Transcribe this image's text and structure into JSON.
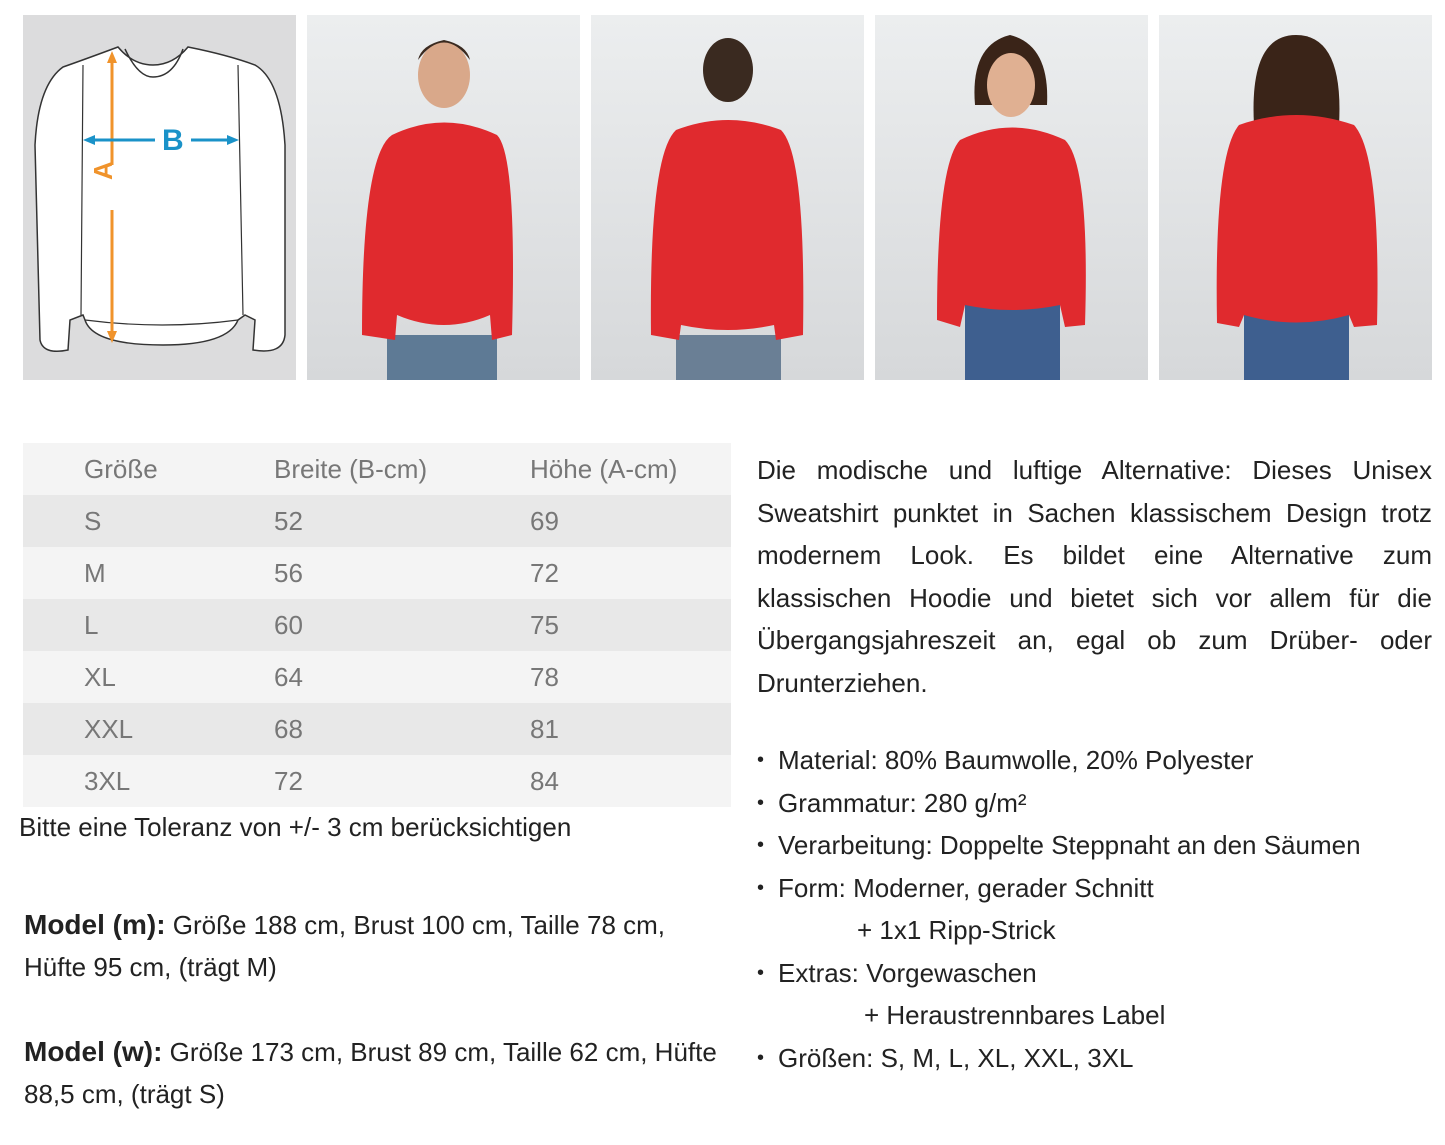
{
  "diagram": {
    "label_a": "A",
    "label_b": "B",
    "color_a": "#f0932b",
    "color_b": "#1a92c8"
  },
  "photos": [
    {
      "view": "male-front",
      "garment_color": "#e02a2e"
    },
    {
      "view": "male-back",
      "garment_color": "#e02a2e"
    },
    {
      "view": "female-front",
      "garment_color": "#e02a2e"
    },
    {
      "view": "female-back",
      "garment_color": "#e02a2e"
    }
  ],
  "size_table": {
    "headers": [
      "Größe",
      "Breite (B-cm)",
      "Höhe (A-cm)"
    ],
    "rows": [
      [
        "S",
        "52",
        "69"
      ],
      [
        "M",
        "56",
        "72"
      ],
      [
        "L",
        "60",
        "75"
      ],
      [
        "XL",
        "64",
        "78"
      ],
      [
        "XXL",
        "68",
        "81"
      ],
      [
        "3XL",
        "72",
        "84"
      ]
    ]
  },
  "tolerance": "Bitte eine Toleranz von +/- 3 cm berücksichtigen",
  "model_m": {
    "label": "Model (m):",
    "text": " Größe 188 cm, Brust 100 cm, Taille 78 cm, Hüfte 95 cm, (trägt M)"
  },
  "model_w": {
    "label": "Model (w):",
    "text": " Größe 173 cm, Brust 89 cm, Taille 62 cm, Hüfte 88,5 cm, (trägt S)"
  },
  "description": "Die modische und luftige Alternative: Dieses Unisex Sweatshirt punktet in Sachen klassischem Design trotz modernem Look. Es bildet eine Alternative zum klassischen Hoodie und bietet sich vor allem für die Übergangsjahreszeit an, egal ob zum Drüber- oder Drunterziehen.",
  "features": {
    "material": "Material: 80% Baumwolle, 20% Polyester",
    "grammatur": "Grammatur: 280 g/m²",
    "verarbeitung": "Verarbeitung: Doppelte Steppnaht an den Säumen",
    "form": "Form: Moderner, gerader Schnitt",
    "form2": "+ 1x1 Ripp-Strick",
    "extras": "Extras: Vorgewaschen",
    "extras2": "+ Heraustrennbares Label",
    "groessen": "Größen:  S, M, L, XL, XXL, 3XL"
  }
}
